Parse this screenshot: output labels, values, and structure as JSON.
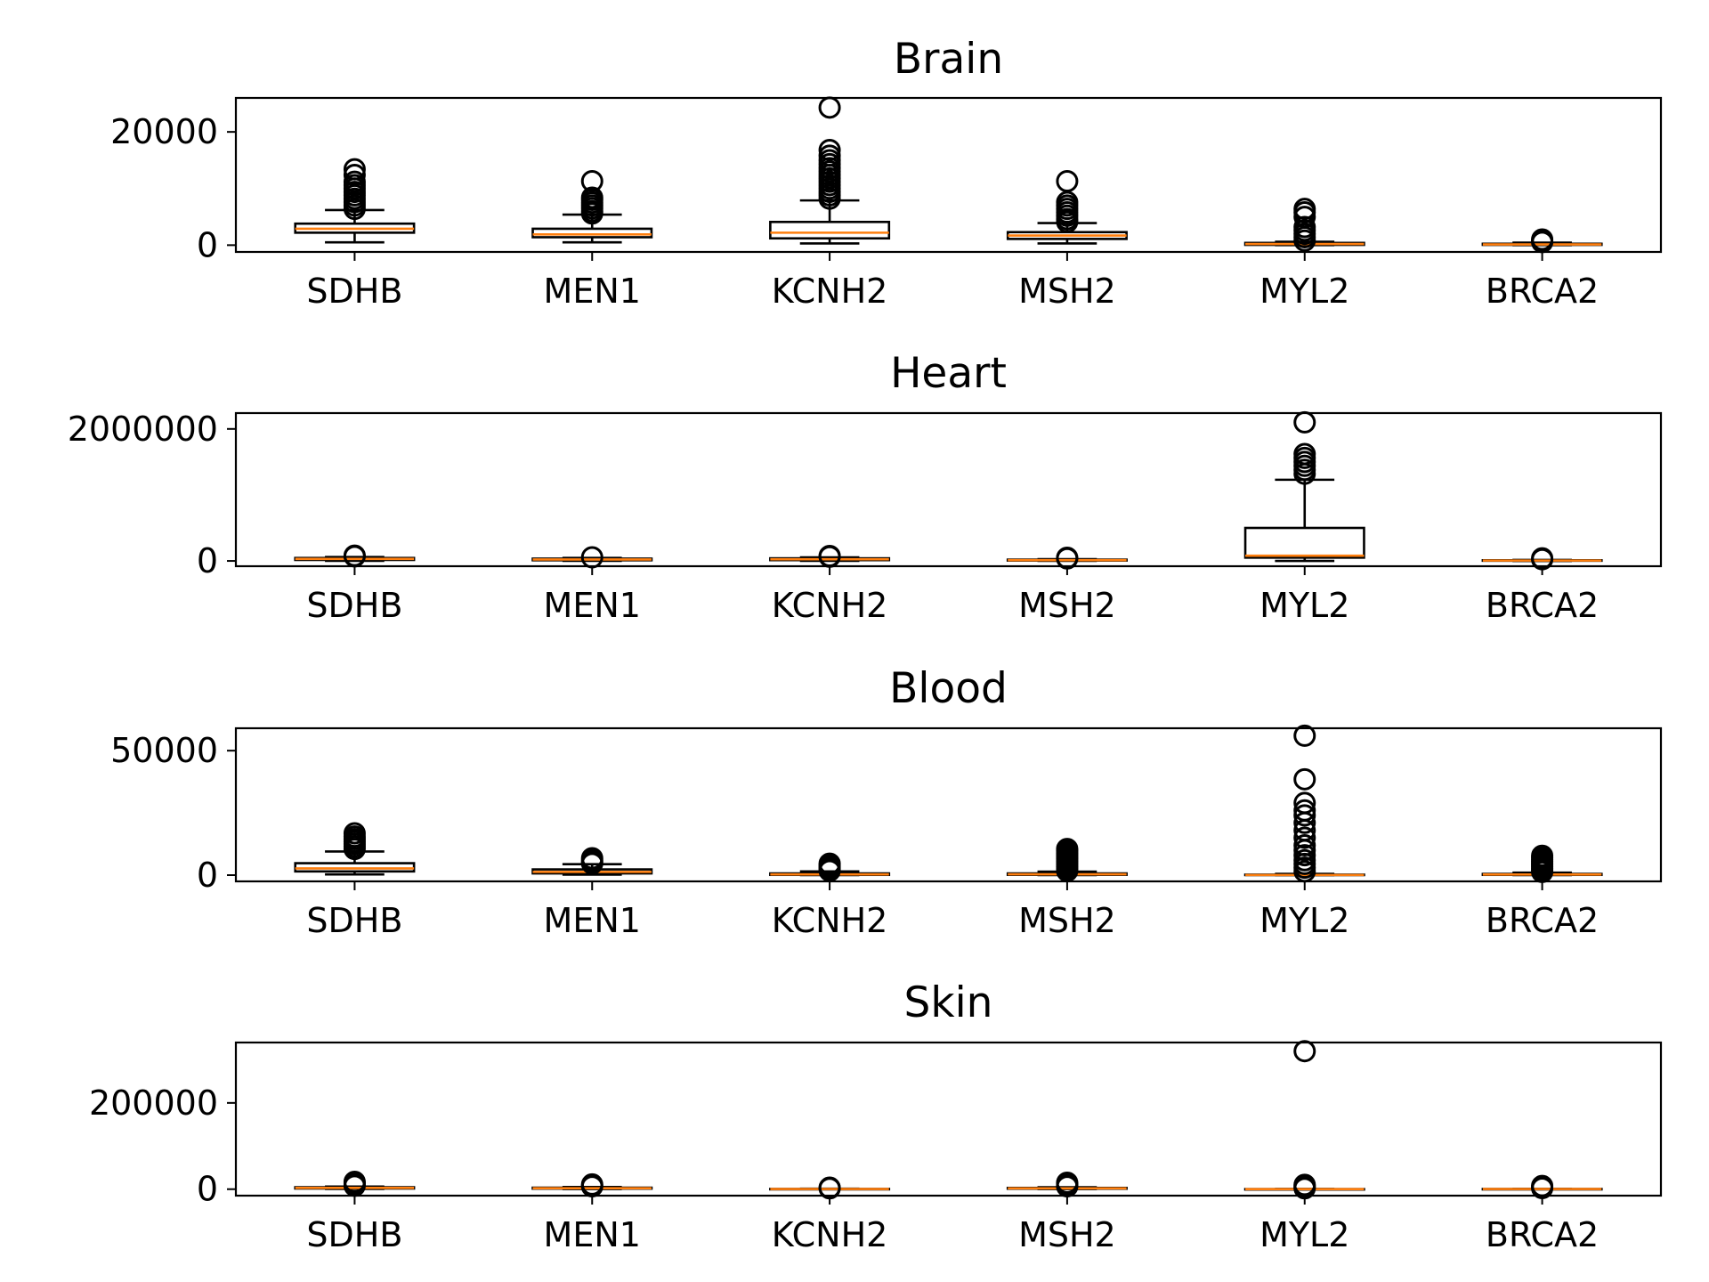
{
  "chart_data": [
    {
      "type": "box",
      "title": "Brain",
      "categories": [
        "SDHB",
        "MEN1",
        "KCNH2",
        "MSH2",
        "MYL2",
        "BRCA2"
      ],
      "yticks": [
        "0",
        "20000"
      ],
      "ylim": [
        -1200,
        26000
      ],
      "boxes": [
        {
          "whislo": 500,
          "q1": 2200,
          "med": 2900,
          "q3": 3800,
          "whishi": 6200,
          "fliers": [
            6400,
            7000,
            7600,
            8200,
            8800,
            9400,
            10000,
            10600,
            11200,
            12400,
            13400
          ]
        },
        {
          "whislo": 500,
          "q1": 1400,
          "med": 1900,
          "q3": 2900,
          "whishi": 5400,
          "fliers": [
            5600,
            6000,
            6500,
            7000,
            7500,
            8000,
            8400,
            11300
          ]
        },
        {
          "whislo": 300,
          "q1": 1200,
          "med": 2200,
          "q3": 4100,
          "whishi": 7900,
          "fliers": [
            8200,
            8800,
            9400,
            10000,
            10600,
            11200,
            11800,
            12400,
            13000,
            13600,
            14300,
            15000,
            15800,
            16800,
            24300
          ]
        },
        {
          "whislo": 300,
          "q1": 1100,
          "med": 1700,
          "q3": 2300,
          "whishi": 3900,
          "fliers": [
            4100,
            4600,
            5200,
            5800,
            6400,
            7000,
            7600,
            11300
          ]
        },
        {
          "whislo": 0,
          "q1": 50,
          "med": 200,
          "q3": 400,
          "whishi": 600,
          "fliers": [
            800,
            1400,
            2000,
            2600,
            3200,
            5000,
            5800,
            6400
          ]
        },
        {
          "whislo": 0,
          "q1": 50,
          "med": 120,
          "q3": 250,
          "whishi": 450,
          "fliers": [
            550,
            800,
            1000
          ]
        }
      ]
    },
    {
      "type": "box",
      "title": "Heart",
      "categories": [
        "SDHB",
        "MEN1",
        "KCNH2",
        "MSH2",
        "MYL2",
        "BRCA2"
      ],
      "yticks": [
        "0",
        "2000000"
      ],
      "ylim": [
        -80000,
        2240000
      ],
      "boxes": [
        {
          "whislo": 2000,
          "q1": 15000,
          "med": 30000,
          "q3": 45000,
          "whishi": 60000,
          "fliers": [
            70000,
            80000
          ]
        },
        {
          "whislo": 2000,
          "q1": 10000,
          "med": 22000,
          "q3": 35000,
          "whishi": 45000,
          "fliers": [
            55000
          ]
        },
        {
          "whislo": 2000,
          "q1": 12000,
          "med": 25000,
          "q3": 40000,
          "whishi": 55000,
          "fliers": [
            65000,
            75000
          ]
        },
        {
          "whislo": 1000,
          "q1": 6000,
          "med": 12000,
          "q3": 20000,
          "whishi": 28000,
          "fliers": [
            38000,
            48000
          ]
        },
        {
          "whislo": 0,
          "q1": 50000,
          "med": 80000,
          "q3": 500000,
          "whishi": 1230000,
          "fliers": [
            1320000,
            1380000,
            1440000,
            1500000,
            1560000,
            1620000,
            2100000
          ]
        },
        {
          "whislo": 500,
          "q1": 3000,
          "med": 6000,
          "q3": 10000,
          "whishi": 15000,
          "fliers": [
            25000,
            40000
          ]
        }
      ]
    },
    {
      "type": "box",
      "title": "Blood",
      "categories": [
        "SDHB",
        "MEN1",
        "KCNH2",
        "MSH2",
        "MYL2",
        "BRCA2"
      ],
      "yticks": [
        "0",
        "50000"
      ],
      "ylim": [
        -2500,
        59000
      ],
      "boxes": [
        {
          "whislo": 300,
          "q1": 1500,
          "med": 2700,
          "q3": 4800,
          "whishi": 9500,
          "fliers": [
            10500,
            11500,
            12500,
            13500,
            14500,
            15500,
            16800
          ]
        },
        {
          "whislo": 200,
          "q1": 700,
          "med": 1300,
          "q3": 2300,
          "whishi": 4400,
          "fliers": [
            4700,
            5300,
            6000,
            6800
          ]
        },
        {
          "whislo": 20,
          "q1": 100,
          "med": 300,
          "q3": 700,
          "whishi": 1500,
          "fliers": [
            1800,
            2500,
            3200,
            3900,
            4600
          ]
        },
        {
          "whislo": 20,
          "q1": 120,
          "med": 350,
          "q3": 700,
          "whishi": 1400,
          "fliers": [
            1700,
            2500,
            3300,
            4100,
            4900,
            5700,
            6500,
            7300,
            8100,
            8900,
            9700,
            10500
          ]
        },
        {
          "whislo": 0,
          "q1": 15,
          "med": 50,
          "q3": 200,
          "whishi": 500,
          "fliers": [
            1500,
            3000,
            4500,
            6000,
            8000,
            10000,
            12000,
            15000,
            18000,
            21000,
            24000,
            26000,
            29000,
            38500,
            56000
          ]
        },
        {
          "whislo": 20,
          "q1": 100,
          "med": 250,
          "q3": 500,
          "whishi": 1000,
          "fliers": [
            1300,
            2000,
            2700,
            3400,
            4100,
            4800,
            5500,
            6200,
            7000,
            7800
          ]
        }
      ]
    },
    {
      "type": "box",
      "title": "Skin",
      "categories": [
        "SDHB",
        "MEN1",
        "KCNH2",
        "MSH2",
        "MYL2",
        "BRCA2"
      ],
      "yticks": [
        "0",
        "200000"
      ],
      "ylim": [
        -15000,
        340000
      ],
      "boxes": [
        {
          "whislo": 500,
          "q1": 1500,
          "med": 3000,
          "q3": 4500,
          "whishi": 6000,
          "fliers": [
            8000,
            11000,
            14000,
            17000
          ]
        },
        {
          "whislo": 300,
          "q1": 1200,
          "med": 2200,
          "q3": 3500,
          "whishi": 5000,
          "fliers": [
            6500,
            8500,
            11000
          ]
        },
        {
          "whislo": 20,
          "q1": 100,
          "med": 300,
          "q3": 600,
          "whishi": 1200,
          "fliers": [
            2000,
            3500
          ]
        },
        {
          "whislo": 300,
          "q1": 1000,
          "med": 1800,
          "q3": 3000,
          "whishi": 4500,
          "fliers": [
            6500,
            9000,
            12000,
            15000
          ]
        },
        {
          "whislo": 0,
          "q1": 10,
          "med": 50,
          "q3": 200,
          "whishi": 500,
          "fliers": [
            2000,
            4000,
            7000,
            10000,
            320000
          ]
        },
        {
          "whislo": 20,
          "q1": 100,
          "med": 250,
          "q3": 500,
          "whishi": 1000,
          "fliers": [
            2500,
            5000,
            7500
          ]
        }
      ]
    }
  ],
  "colors": {
    "median": "#ff7f0e",
    "box": "#000000",
    "axes": "#000000",
    "background": "#ffffff"
  }
}
